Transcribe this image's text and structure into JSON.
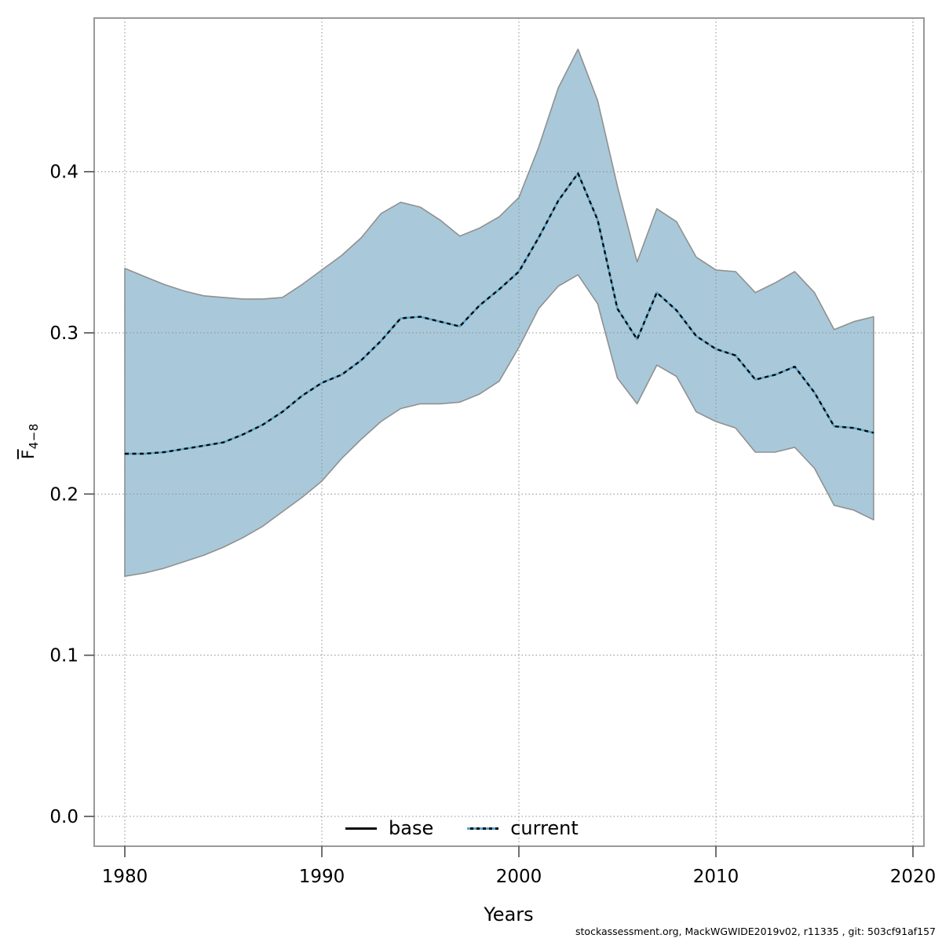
{
  "figure": {
    "title": "",
    "xlabel": "Years",
    "ylabel_main": "F",
    "ylabel_sub": "4−8",
    "footer": "stockassessment.org, MackWGWIDE2019v02, r11335 , git: 503cf91af157"
  },
  "chart_data": {
    "type": "line",
    "title": "",
    "xlabel": "Years",
    "ylabel": "Fbar 4-8",
    "grid": true,
    "xlim": [
      1978.4,
      2020.6
    ],
    "ylim": [
      -0.019,
      0.495
    ],
    "x_ticks": [
      1980,
      1990,
      2000,
      2010,
      2020
    ],
    "x_tick_labels": [
      "1980",
      "1990",
      "2000",
      "2010",
      "2020"
    ],
    "y_ticks": [
      0.0,
      0.1,
      0.2,
      0.3,
      0.4
    ],
    "y_tick_labels": [
      "0.0",
      "0.1",
      "0.2",
      "0.3",
      "0.4"
    ],
    "legend": {
      "position": "bottom-center",
      "entries": [
        {
          "label": "base",
          "line": "solid",
          "color": "#0a0a0a"
        },
        {
          "label": "current",
          "line": "dotted",
          "color": "#58a5ca"
        }
      ]
    },
    "years": [
      1980,
      1981,
      1982,
      1983,
      1984,
      1985,
      1986,
      1987,
      1988,
      1989,
      1990,
      1991,
      1992,
      1993,
      1994,
      1995,
      1996,
      1997,
      1998,
      1999,
      2000,
      2001,
      2002,
      2003,
      2004,
      2005,
      2006,
      2007,
      2008,
      2009,
      2010,
      2011,
      2012,
      2013,
      2014,
      2015,
      2016,
      2017,
      2018
    ],
    "series": [
      {
        "name": "current",
        "values": [
          0.225,
          0.225,
          0.226,
          0.228,
          0.23,
          0.232,
          0.237,
          0.243,
          0.251,
          0.261,
          0.269,
          0.274,
          0.283,
          0.295,
          0.309,
          0.31,
          0.307,
          0.304,
          0.317,
          0.327,
          0.338,
          0.359,
          0.382,
          0.399,
          0.37,
          0.315,
          0.296,
          0.325,
          0.314,
          0.298,
          0.29,
          0.286,
          0.271,
          0.274,
          0.279,
          0.263,
          0.242,
          0.241,
          0.238
        ]
      },
      {
        "name": "current_lower_ci",
        "values": [
          0.149,
          0.151,
          0.154,
          0.158,
          0.162,
          0.167,
          0.173,
          0.18,
          0.189,
          0.198,
          0.208,
          0.222,
          0.234,
          0.245,
          0.253,
          0.256,
          0.256,
          0.257,
          0.262,
          0.27,
          0.291,
          0.315,
          0.329,
          0.336,
          0.318,
          0.272,
          0.256,
          0.28,
          0.273,
          0.251,
          0.245,
          0.241,
          0.226,
          0.226,
          0.229,
          0.216,
          0.193,
          0.19,
          0.184
        ]
      },
      {
        "name": "current_upper_ci",
        "values": [
          0.34,
          0.335,
          0.33,
          0.326,
          0.323,
          0.322,
          0.321,
          0.321,
          0.322,
          0.33,
          0.339,
          0.348,
          0.359,
          0.374,
          0.381,
          0.378,
          0.37,
          0.36,
          0.365,
          0.372,
          0.384,
          0.415,
          0.452,
          0.476,
          0.444,
          0.391,
          0.344,
          0.377,
          0.369,
          0.347,
          0.339,
          0.338,
          0.325,
          0.331,
          0.338,
          0.325,
          0.302,
          0.307,
          0.31
        ]
      }
    ],
    "colors": {
      "band_fill": "#a9c9da",
      "band_border": "#909090",
      "current_line": "#58a5ca",
      "base_line": "#0a0a0a",
      "grid": "#8c8c8c",
      "frame": "#999999",
      "tick": "#4d4d4d",
      "text": "#000000"
    }
  }
}
